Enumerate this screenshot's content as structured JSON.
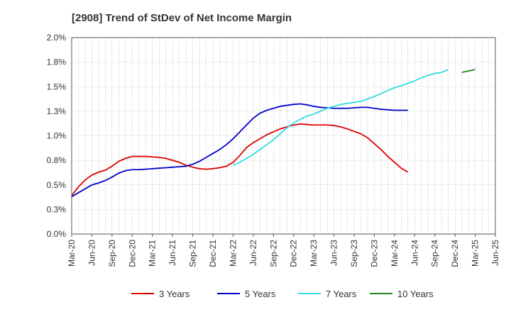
{
  "chart_data": {
    "type": "line",
    "title": "[2908]  Trend of StDev of Net Income Margin",
    "xlabel": "",
    "ylabel": "",
    "x_ticks": [
      "Mar-20",
      "Jun-20",
      "Sep-20",
      "Dec-20",
      "Mar-21",
      "Jun-21",
      "Sep-21",
      "Dec-21",
      "Mar-22",
      "Jun-22",
      "Sep-22",
      "Dec-22",
      "Mar-23",
      "Jun-23",
      "Sep-23",
      "Dec-23",
      "Mar-24",
      "Jun-24",
      "Sep-24",
      "Dec-24",
      "Mar-25",
      "Jun-25"
    ],
    "y_ticks": [
      "0.0%",
      "0.3%",
      "0.5%",
      "0.8%",
      "1.0%",
      "1.3%",
      "1.5%",
      "1.8%",
      "2.0%"
    ],
    "ylim": [
      0,
      2.0
    ],
    "grid": true,
    "legend_position": "bottom",
    "series": [
      {
        "name": "3 Years",
        "color": "#dd0000",
        "start": "Mar-20",
        "values": [
          0.39,
          0.48,
          0.55,
          0.6,
          0.63,
          0.65,
          0.69,
          0.74,
          0.77,
          0.79,
          0.79,
          0.79,
          0.785,
          0.78,
          0.77,
          0.75,
          0.73,
          0.7,
          0.68,
          0.665,
          0.66,
          0.665,
          0.675,
          0.69,
          0.73,
          0.8,
          0.88,
          0.93,
          0.97,
          1.01,
          1.04,
          1.07,
          1.09,
          1.11,
          1.12,
          1.115,
          1.11,
          1.11,
          1.11,
          1.105,
          1.09,
          1.07,
          1.045,
          1.02,
          0.98,
          0.92,
          0.86,
          0.79,
          0.73,
          0.67,
          0.63
        ]
      },
      {
        "name": "5 Years",
        "color": "#0000cc",
        "start": "Mar-20",
        "values": [
          0.38,
          0.42,
          0.46,
          0.5,
          0.52,
          0.545,
          0.58,
          0.62,
          0.645,
          0.655,
          0.655,
          0.66,
          0.665,
          0.67,
          0.675,
          0.68,
          0.685,
          0.69,
          0.71,
          0.74,
          0.78,
          0.82,
          0.86,
          0.91,
          0.97,
          1.04,
          1.11,
          1.18,
          1.23,
          1.26,
          1.28,
          1.3,
          1.31,
          1.32,
          1.325,
          1.315,
          1.3,
          1.29,
          1.285,
          1.28,
          1.28,
          1.28,
          1.285,
          1.29,
          1.29,
          1.28,
          1.27,
          1.265,
          1.26,
          1.26,
          1.26
        ]
      },
      {
        "name": "7 Years",
        "color": "#33dddd",
        "start": "Mar-22",
        "values": [
          0.7,
          0.73,
          0.77,
          0.81,
          0.86,
          0.91,
          0.96,
          1.02,
          1.08,
          1.13,
          1.17,
          1.2,
          1.22,
          1.25,
          1.28,
          1.3,
          1.32,
          1.33,
          1.34,
          1.35,
          1.375,
          1.4,
          1.43,
          1.46,
          1.49,
          1.51,
          1.535,
          1.56,
          1.59,
          1.615,
          1.635,
          1.645,
          1.675
        ]
      },
      {
        "name": "10 Years",
        "color": "#228822",
        "start": "Jan-25",
        "values": [
          1.645,
          1.66,
          1.675
        ]
      }
    ]
  }
}
